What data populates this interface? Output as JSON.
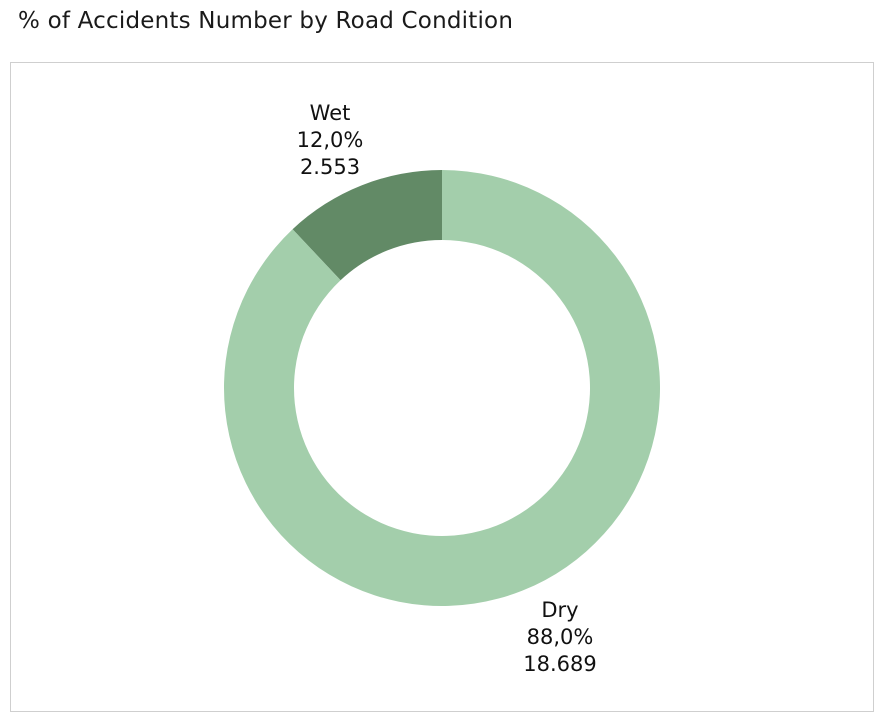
{
  "title": "% of Accidents Number by Road Condition",
  "chart_data": {
    "type": "pie",
    "donut": true,
    "title": "% of Accidents Number by Road Condition",
    "slices": [
      {
        "label": "Wet",
        "percent_label": "12,0%",
        "count_label": "2.553",
        "value": 2553,
        "percent": 12.0,
        "color": "#628a66"
      },
      {
        "label": "Dry",
        "percent_label": "88,0%",
        "count_label": "18.689",
        "value": 18689,
        "percent": 88.0,
        "color": "#a3ceab"
      }
    ],
    "legend": "none"
  }
}
